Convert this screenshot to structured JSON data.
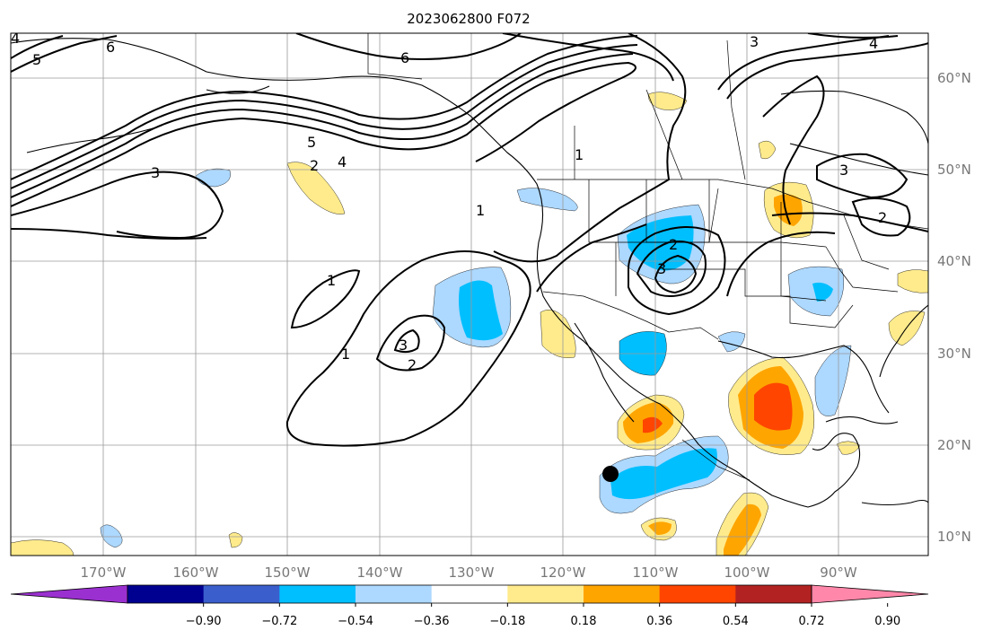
{
  "title": "2023062800 F072",
  "lon_ticks": [
    "170°W",
    "160°W",
    "150°W",
    "140°W",
    "130°W",
    "120°W",
    "110°W",
    "100°W",
    "90°W"
  ],
  "lat_ticks": [
    "60°N",
    "50°N",
    "40°N",
    "30°N",
    "20°N",
    "10°N"
  ],
  "colorbar": {
    "colors": [
      "#9b30d0",
      "#000090",
      "#3a5fcd",
      "#00bfff",
      "#add8ff",
      "#ffffff",
      "#ffeb8c",
      "#ffa500",
      "#ff4500",
      "#b22222",
      "#ff88aa"
    ],
    "labels": [
      "−0.90",
      "−0.72",
      "−0.54",
      "−0.36",
      "−0.18",
      "0.18",
      "0.36",
      "0.54",
      "0.72",
      "0.90"
    ]
  },
  "contour_labels": [
    "6",
    "5",
    "4",
    "3",
    "2",
    "1",
    "3",
    "4",
    "5",
    "6",
    "1",
    "2",
    "3",
    "1",
    "2",
    "3",
    "1",
    "3",
    "2",
    "4"
  ],
  "marker": "storm-position-dot"
}
